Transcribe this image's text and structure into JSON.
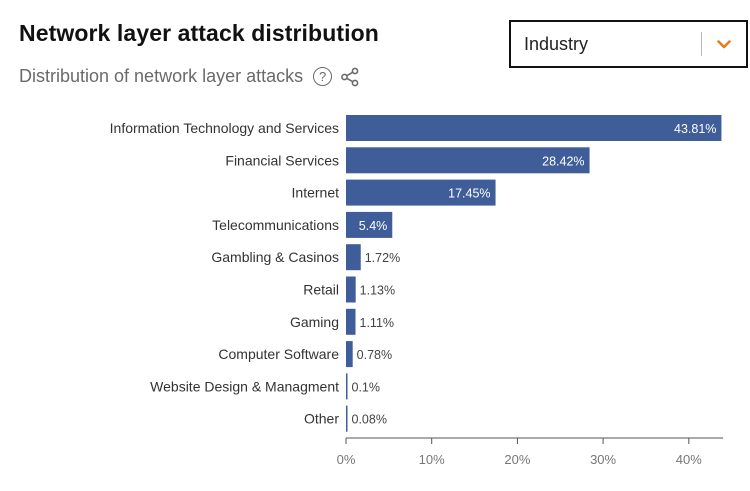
{
  "header": {
    "title": "Network layer attack distribution",
    "subtitle": "Distribution of network layer attacks",
    "help_icon": "question-circle-icon",
    "share_icon": "share-icon"
  },
  "dropdown": {
    "selected": "Industry",
    "icon": "chevron-down-icon",
    "accent_color": "#e0801e"
  },
  "chart_data": {
    "type": "bar",
    "orientation": "horizontal",
    "title": "Network layer attack distribution",
    "subtitle": "Distribution of network layer attacks",
    "categories": [
      "Information Technology and Services",
      "Financial Services",
      "Internet",
      "Telecommunications",
      "Gambling & Casinos",
      "Retail",
      "Gaming",
      "Computer Software",
      "Website Design & Managment",
      "Other"
    ],
    "values": [
      43.81,
      28.42,
      17.45,
      5.4,
      1.72,
      1.13,
      1.11,
      0.78,
      0.1,
      0.08
    ],
    "value_labels": [
      "43.81%",
      "28.42%",
      "17.45%",
      "5.4%",
      "1.72%",
      "1.13%",
      "1.11%",
      "0.78%",
      "0.1%",
      "0.08%"
    ],
    "xlim": [
      0,
      44
    ],
    "x_ticks": [
      0,
      10,
      20,
      30,
      40
    ],
    "x_tick_labels": [
      "0%",
      "10%",
      "20%",
      "30%",
      "40%"
    ],
    "bar_color": "#3f5d99",
    "grid": false,
    "legend": "none"
  }
}
